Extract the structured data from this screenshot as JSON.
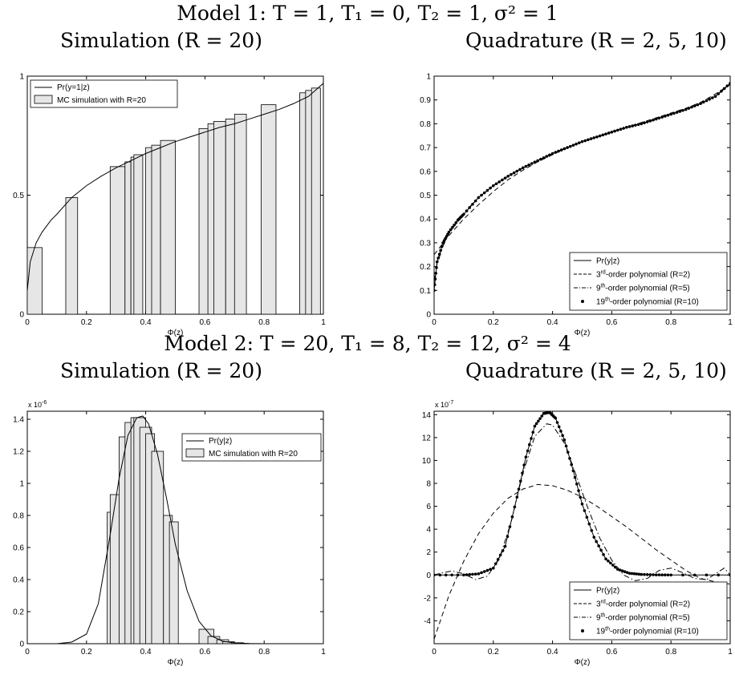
{
  "headings": {
    "model1": "Model 1: T = 1, T₁ = 0, T₂ = 1, σ² = 1",
    "model2": "Model 2: T = 20, T₁ = 8, T₂ = 12, σ² = 4",
    "sim": "Simulation (R = 20)",
    "quad": "Quadrature (R = 2, 5, 10)"
  },
  "chart_data": [
    {
      "id": "m1-sim",
      "type": "bar",
      "xlabel": "Φ(z)",
      "ylabel": "",
      "xlim": [
        0,
        1
      ],
      "ylim": [
        0,
        1
      ],
      "xticks": [
        0,
        0.2,
        0.4,
        0.6,
        0.8,
        1
      ],
      "xtick_labels": [
        "0",
        "0.2",
        "0.4",
        "0.6",
        "0.8",
        "1"
      ],
      "yticks": [
        0,
        0.5,
        1
      ],
      "ytick_labels": [
        "0",
        "0.5",
        "1"
      ],
      "legend": {
        "position": "top-left",
        "entries": [
          "Pr(y=1|z)",
          "MC simulation with R=20"
        ]
      },
      "bars": [
        {
          "x": [
            0.0,
            0.05
          ],
          "h": 0.28
        },
        {
          "x": [
            0.13,
            0.17
          ],
          "h": 0.49
        },
        {
          "x": [
            0.28,
            0.33
          ],
          "h": 0.62
        },
        {
          "x": [
            0.33,
            0.35
          ],
          "h": 0.64
        },
        {
          "x": [
            0.35,
            0.38
          ],
          "h": 0.66
        },
        {
          "x": [
            0.36,
            0.39
          ],
          "h": 0.67
        },
        {
          "x": [
            0.4,
            0.44
          ],
          "h": 0.7
        },
        {
          "x": [
            0.42,
            0.45
          ],
          "h": 0.71
        },
        {
          "x": [
            0.45,
            0.5
          ],
          "h": 0.73
        },
        {
          "x": [
            0.58,
            0.62
          ],
          "h": 0.78
        },
        {
          "x": [
            0.61,
            0.64
          ],
          "h": 0.8
        },
        {
          "x": [
            0.63,
            0.67
          ],
          "h": 0.81
        },
        {
          "x": [
            0.67,
            0.71
          ],
          "h": 0.82
        },
        {
          "x": [
            0.7,
            0.74
          ],
          "h": 0.84
        },
        {
          "x": [
            0.79,
            0.84
          ],
          "h": 0.88
        },
        {
          "x": [
            0.92,
            0.95
          ],
          "h": 0.93
        },
        {
          "x": [
            0.94,
            0.97
          ],
          "h": 0.94
        },
        {
          "x": [
            0.96,
            0.99
          ],
          "h": 0.95
        }
      ],
      "curve": {
        "name": "Pr(y=1|z)",
        "x": [
          0,
          0.01,
          0.03,
          0.05,
          0.08,
          0.1,
          0.15,
          0.2,
          0.25,
          0.3,
          0.35,
          0.4,
          0.45,
          0.5,
          0.55,
          0.6,
          0.65,
          0.7,
          0.75,
          0.8,
          0.85,
          0.9,
          0.95,
          1.0
        ],
        "y": [
          0.1,
          0.22,
          0.3,
          0.345,
          0.395,
          0.42,
          0.49,
          0.54,
          0.58,
          0.615,
          0.645,
          0.675,
          0.7,
          0.725,
          0.745,
          0.765,
          0.785,
          0.8,
          0.82,
          0.84,
          0.86,
          0.885,
          0.915,
          0.97
        ]
      }
    },
    {
      "id": "m1-quad",
      "type": "line",
      "xlabel": "Φ(z)",
      "ylabel": "",
      "xlim": [
        0,
        1
      ],
      "ylim": [
        0,
        1
      ],
      "xticks": [
        0,
        0.2,
        0.4,
        0.6,
        0.8,
        1
      ],
      "xtick_labels": [
        "0",
        "0.2",
        "0.4",
        "0.6",
        "0.8",
        "1"
      ],
      "yticks": [
        0,
        0.1,
        0.2,
        0.3,
        0.4,
        0.5,
        0.6,
        0.7,
        0.8,
        0.9,
        1
      ],
      "ytick_labels": [
        "0",
        "0.1",
        "0.2",
        "0.3",
        "0.4",
        "0.5",
        "0.6",
        "0.7",
        "0.8",
        "0.9",
        "1"
      ],
      "legend": {
        "position": "bottom-right",
        "entries": [
          {
            "pre": "Pr(y|z)",
            "sup": "",
            "post": "",
            "style": "solid"
          },
          {
            "pre": "3",
            "sup": "rd",
            "post": "-order polynomial (R=2)",
            "style": "dash"
          },
          {
            "pre": "9",
            "sup": "th",
            "post": "-order polynomial (R=5)",
            "style": "dashdot"
          },
          {
            "pre": "19",
            "sup": "th",
            "post": "-order polynomial  (R=10)",
            "style": "dot"
          }
        ]
      },
      "series": [
        {
          "name": "Pr(y|z)",
          "style": "solid",
          "x": [
            0,
            0.01,
            0.03,
            0.05,
            0.08,
            0.1,
            0.15,
            0.2,
            0.25,
            0.3,
            0.35,
            0.4,
            0.45,
            0.5,
            0.55,
            0.6,
            0.65,
            0.7,
            0.75,
            0.8,
            0.85,
            0.9,
            0.95,
            1.0
          ],
          "y": [
            0.1,
            0.22,
            0.3,
            0.345,
            0.395,
            0.42,
            0.49,
            0.54,
            0.58,
            0.615,
            0.645,
            0.675,
            0.7,
            0.725,
            0.745,
            0.765,
            0.785,
            0.8,
            0.82,
            0.84,
            0.86,
            0.885,
            0.915,
            0.97
          ]
        },
        {
          "name": "3rd-order polynomial (R=2)",
          "style": "dash",
          "x": [
            0,
            0.05,
            0.1,
            0.15,
            0.2,
            0.25,
            0.3,
            0.35,
            0.4,
            0.45,
            0.5,
            0.55,
            0.6,
            0.65,
            0.7,
            0.75,
            0.8,
            0.85,
            0.9,
            0.95,
            1.0
          ],
          "y": [
            0.25,
            0.33,
            0.4,
            0.46,
            0.515,
            0.565,
            0.605,
            0.64,
            0.67,
            0.7,
            0.725,
            0.745,
            0.765,
            0.785,
            0.805,
            0.825,
            0.845,
            0.865,
            0.89,
            0.925,
            0.965
          ]
        },
        {
          "name": "9th-order polynomial (R=5)",
          "style": "dashdot",
          "x": [
            0,
            0.01,
            0.03,
            0.05,
            0.08,
            0.1,
            0.15,
            0.2,
            0.25,
            0.3,
            0.35,
            0.4,
            0.45,
            0.5,
            0.55,
            0.6,
            0.65,
            0.7,
            0.75,
            0.8,
            0.85,
            0.9,
            0.95,
            1.0
          ],
          "y": [
            0.14,
            0.21,
            0.285,
            0.34,
            0.39,
            0.425,
            0.49,
            0.54,
            0.58,
            0.615,
            0.645,
            0.675,
            0.7,
            0.725,
            0.745,
            0.765,
            0.785,
            0.8,
            0.82,
            0.84,
            0.86,
            0.885,
            0.915,
            0.965
          ]
        },
        {
          "name": "19th-order polynomial (R=10)",
          "style": "dot",
          "x": [
            0,
            0.01,
            0.03,
            0.05,
            0.08,
            0.1,
            0.15,
            0.2,
            0.25,
            0.3,
            0.35,
            0.4,
            0.45,
            0.5,
            0.55,
            0.6,
            0.65,
            0.7,
            0.75,
            0.8,
            0.85,
            0.9,
            0.95,
            1.0
          ],
          "y": [
            0.1,
            0.22,
            0.3,
            0.345,
            0.395,
            0.42,
            0.49,
            0.54,
            0.58,
            0.615,
            0.645,
            0.675,
            0.7,
            0.725,
            0.745,
            0.765,
            0.785,
            0.8,
            0.82,
            0.84,
            0.86,
            0.885,
            0.915,
            0.97
          ]
        }
      ]
    },
    {
      "id": "m2-sim",
      "type": "bar",
      "xlabel": "Φ(z)",
      "ylabel": "",
      "multiplier": {
        "base": "x 10",
        "exp": "-6"
      },
      "xlim": [
        0,
        1
      ],
      "ylim": [
        0,
        1.45
      ],
      "xticks": [
        0,
        0.2,
        0.4,
        0.6,
        0.8,
        1
      ],
      "xtick_labels": [
        "0",
        "0.2",
        "0.4",
        "0.6",
        "0.8",
        "1"
      ],
      "yticks": [
        0,
        0.2,
        0.4,
        0.6,
        0.8,
        1,
        1.2,
        1.4
      ],
      "ytick_labels": [
        "0",
        "0.2",
        "0.4",
        "0.6",
        "0.8",
        "1",
        "1.2",
        "1.4"
      ],
      "legend": {
        "position": "top-right",
        "entries": [
          "Pr(y|z)",
          "MC simulation with R=20"
        ]
      },
      "bars": [
        {
          "x": [
            0.27,
            0.3
          ],
          "h": 0.82
        },
        {
          "x": [
            0.28,
            0.31
          ],
          "h": 0.93
        },
        {
          "x": [
            0.31,
            0.34
          ],
          "h": 1.29
        },
        {
          "x": [
            0.33,
            0.36
          ],
          "h": 1.38
        },
        {
          "x": [
            0.35,
            0.38
          ],
          "h": 1.41
        },
        {
          "x": [
            0.36,
            0.4
          ],
          "h": 1.41
        },
        {
          "x": [
            0.38,
            0.42
          ],
          "h": 1.35
        },
        {
          "x": [
            0.4,
            0.43
          ],
          "h": 1.31
        },
        {
          "x": [
            0.42,
            0.46
          ],
          "h": 1.2
        },
        {
          "x": [
            0.46,
            0.49
          ],
          "h": 0.8
        },
        {
          "x": [
            0.48,
            0.51
          ],
          "h": 0.76
        },
        {
          "x": [
            0.58,
            0.63
          ],
          "h": 0.09
        },
        {
          "x": [
            0.61,
            0.65
          ],
          "h": 0.045
        },
        {
          "x": [
            0.64,
            0.68
          ],
          "h": 0.025
        },
        {
          "x": [
            0.66,
            0.7
          ],
          "h": 0.012
        },
        {
          "x": [
            0.69,
            0.73
          ],
          "h": 0.006
        }
      ],
      "curve": {
        "name": "Pr(y|z)",
        "x": [
          0,
          0.1,
          0.15,
          0.2,
          0.24,
          0.28,
          0.31,
          0.34,
          0.37,
          0.39,
          0.41,
          0.44,
          0.47,
          0.5,
          0.54,
          0.58,
          0.62,
          0.66,
          0.7,
          0.75,
          0.8,
          1.0
        ],
        "y": [
          0,
          0.0,
          0.01,
          0.06,
          0.25,
          0.68,
          1.03,
          1.3,
          1.41,
          1.42,
          1.37,
          1.18,
          0.91,
          0.62,
          0.33,
          0.14,
          0.05,
          0.015,
          0.005,
          0.001,
          0,
          0
        ]
      }
    },
    {
      "id": "m2-quad",
      "type": "line",
      "xlabel": "Φ(z)",
      "ylabel": "",
      "multiplier": {
        "base": "x 10",
        "exp": "-7"
      },
      "xlim": [
        0,
        1
      ],
      "ylim": [
        -6,
        14.3
      ],
      "xticks": [
        0,
        0.2,
        0.4,
        0.6,
        0.8,
        1
      ],
      "xtick_labels": [
        "0",
        "0.2",
        "0.4",
        "0.6",
        "0.8",
        "1"
      ],
      "yticks": [
        -4,
        -2,
        0,
        2,
        4,
        6,
        8,
        10,
        12,
        14
      ],
      "ytick_labels": [
        "-4",
        "-2",
        "0",
        "2",
        "4",
        "6",
        "8",
        "10",
        "12",
        "14"
      ],
      "legend": {
        "position": "bottom-right",
        "entries": [
          {
            "pre": "Pr(y|z)",
            "sup": "",
            "post": "",
            "style": "solid"
          },
          {
            "pre": "3",
            "sup": "rd",
            "post": "-order polynomial (R=2)",
            "style": "dash"
          },
          {
            "pre": "9",
            "sup": "th",
            "post": "-order polynomial (R=5)",
            "style": "dashdot"
          },
          {
            "pre": "19",
            "sup": "th",
            "post": "-order polynomial  (R=10)",
            "style": "dot"
          }
        ]
      },
      "series": [
        {
          "name": "Pr(y|z)",
          "style": "solid",
          "x": [
            0,
            0.1,
            0.15,
            0.2,
            0.24,
            0.28,
            0.31,
            0.34,
            0.37,
            0.39,
            0.41,
            0.44,
            0.47,
            0.5,
            0.54,
            0.58,
            0.62,
            0.66,
            0.7,
            0.75,
            0.8,
            1.0
          ],
          "y": [
            0,
            0.0,
            0.1,
            0.6,
            2.5,
            6.8,
            10.3,
            13.0,
            14.1,
            14.2,
            13.7,
            11.8,
            9.1,
            6.2,
            3.3,
            1.4,
            0.5,
            0.15,
            0.05,
            0.01,
            0,
            0
          ]
        },
        {
          "name": "3rd-order polynomial (R=2)",
          "style": "dash",
          "x": [
            0,
            0.05,
            0.1,
            0.15,
            0.2,
            0.25,
            0.3,
            0.35,
            0.4,
            0.45,
            0.5,
            0.55,
            0.6,
            0.65,
            0.7,
            0.75,
            0.8,
            0.85,
            0.9,
            0.95,
            1.0
          ],
          "y": [
            -5.6,
            -1.8,
            1.2,
            3.6,
            5.4,
            6.7,
            7.5,
            7.9,
            7.8,
            7.4,
            6.8,
            6.0,
            5.1,
            4.2,
            3.2,
            2.2,
            1.3,
            0.4,
            -0.3,
            -0.6,
            -0.8
          ]
        },
        {
          "name": "9th-order polynomial (R=5)",
          "style": "dashdot",
          "x": [
            0,
            0.03,
            0.06,
            0.1,
            0.14,
            0.18,
            0.22,
            0.26,
            0.3,
            0.34,
            0.38,
            0.4,
            0.44,
            0.48,
            0.52,
            0.56,
            0.6,
            0.64,
            0.68,
            0.72,
            0.76,
            0.8,
            0.84,
            0.88,
            0.92,
            0.95,
            0.98,
            1.0
          ],
          "y": [
            0,
            0.2,
            0.35,
            0.1,
            -0.4,
            -0.1,
            1.4,
            4.6,
            8.9,
            12.1,
            13.2,
            13.1,
            11.5,
            8.7,
            5.8,
            3.2,
            1.3,
            0.0,
            -0.5,
            -0.3,
            0.4,
            0.6,
            0.2,
            -0.3,
            -0.4,
            0.1,
            0.6,
            0
          ]
        },
        {
          "name": "19th-order polynomial (R=10)",
          "style": "dot",
          "x": [
            0,
            0.1,
            0.15,
            0.2,
            0.24,
            0.28,
            0.31,
            0.34,
            0.37,
            0.39,
            0.41,
            0.44,
            0.47,
            0.5,
            0.54,
            0.58,
            0.62,
            0.66,
            0.7,
            0.75,
            0.8,
            1.0
          ],
          "y": [
            0,
            0.0,
            0.1,
            0.6,
            2.5,
            6.8,
            10.3,
            13.0,
            14.1,
            14.2,
            13.7,
            11.8,
            9.1,
            6.2,
            3.3,
            1.4,
            0.5,
            0.15,
            0.05,
            0.01,
            0,
            0
          ]
        }
      ]
    }
  ]
}
